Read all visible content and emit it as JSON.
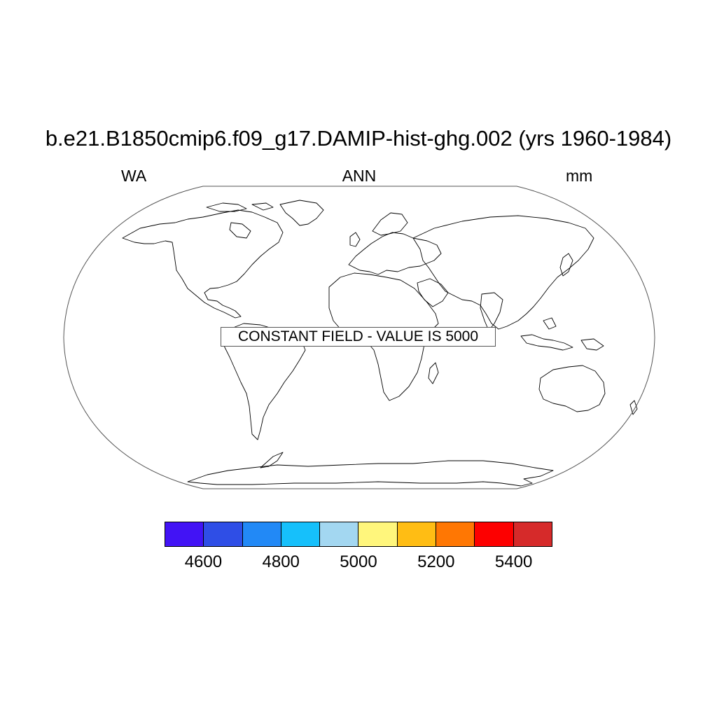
{
  "title": "b.e21.B1850cmip6.f09_g17.DAMIP-hist-ghg.002 (yrs 1960-1984)",
  "subtitle": {
    "left": "WA",
    "center": "ANN",
    "right": "mm"
  },
  "map": {
    "projection": "robinson",
    "field_notice": "CONSTANT FIELD - VALUE IS 5000",
    "constant_value": 5000,
    "coastline_color": "#000000"
  },
  "colorbar": {
    "colors": [
      "#4213f5",
      "#2f4ee6",
      "#2289f6",
      "#16c0fb",
      "#a3d7f1",
      "#fff67c",
      "#ffbd14",
      "#ff7703",
      "#fd0000",
      "#d62a2a"
    ],
    "level_min": 4500,
    "level_step": 100,
    "labels": [
      "4600",
      "4800",
      "5000",
      "5200",
      "5400"
    ],
    "label_values": [
      4600,
      4800,
      5000,
      5200,
      5400
    ]
  }
}
